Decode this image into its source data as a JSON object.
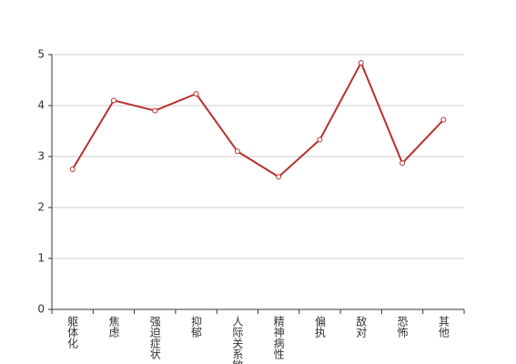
{
  "chart_data": {
    "type": "line",
    "categories": [
      "躯体化",
      "焦虑",
      "强迫症状",
      "抑郁",
      "人际关系敏感",
      "精神病性",
      "偏执",
      "敌对",
      "恐怖",
      "其他"
    ],
    "values": [
      2.75,
      4.1,
      3.9,
      4.23,
      3.1,
      2.6,
      3.33,
      4.84,
      2.87,
      3.72
    ],
    "color": "#b8302e",
    "ylim": [
      0,
      5
    ],
    "yticks": [
      0,
      1,
      2,
      3,
      4,
      5
    ],
    "grid": true
  }
}
